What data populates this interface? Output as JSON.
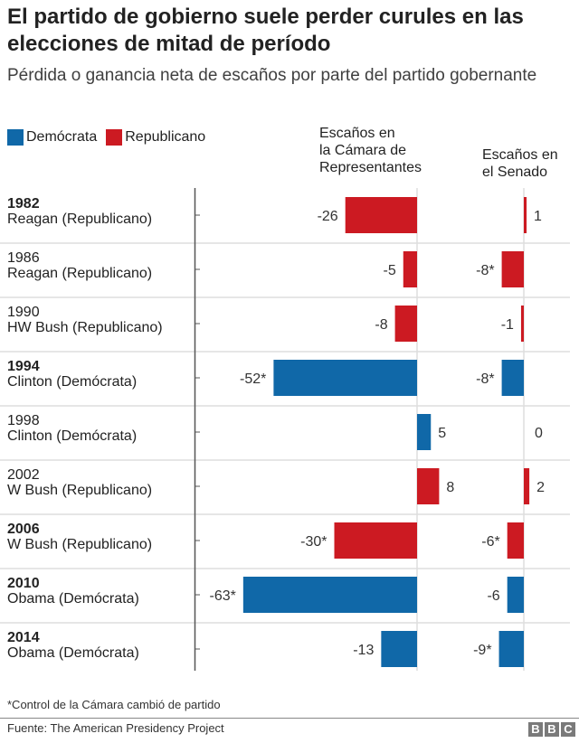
{
  "title": "El partido de gobierno suele perder curules en las elecciones de mitad de período",
  "subtitle": "Pérdida o ganancia neta de escaños por parte del partido gobernante",
  "legend": [
    {
      "label": "Demócrata",
      "color": "#1068a8"
    },
    {
      "label": "Republicano",
      "color": "#cc1a22"
    }
  ],
  "chart_data": {
    "type": "bar",
    "orientation": "horizontal",
    "columns": [
      "Escaños en la Cámara de Representantes",
      "Escaños en el Senado"
    ],
    "column_lines": {
      "house": [
        "Escaños en",
        "la Cámara de",
        "Representantes"
      ],
      "senate": [
        "Escaños en",
        "el Senado"
      ]
    },
    "rows": [
      {
        "year": "1982",
        "president": "Reagan (Republicano)",
        "party": "Republicano",
        "bold": true,
        "house": -26,
        "house_label": "-26",
        "senate": 1,
        "senate_label": "1"
      },
      {
        "year": "1986",
        "president": "Reagan (Republicano)",
        "party": "Republicano",
        "bold": false,
        "house": -5,
        "house_label": "-5",
        "senate": -8,
        "senate_label": "-8*"
      },
      {
        "year": "1990",
        "president": "HW Bush (Republicano)",
        "party": "Republicano",
        "bold": false,
        "house": -8,
        "house_label": "-8",
        "senate": -1,
        "senate_label": "-1"
      },
      {
        "year": "1994",
        "president": "Clinton (Demócrata)",
        "party": "Demócrata",
        "bold": true,
        "house": -52,
        "house_label": "-52*",
        "senate": -8,
        "senate_label": "-8*"
      },
      {
        "year": "1998",
        "president": "Clinton (Demócrata)",
        "party": "Demócrata",
        "bold": false,
        "house": 5,
        "house_label": "5",
        "senate": 0,
        "senate_label": "0"
      },
      {
        "year": "2002",
        "president": "W Bush (Republicano)",
        "party": "Republicano",
        "bold": false,
        "house": 8,
        "house_label": "8",
        "senate": 2,
        "senate_label": "2"
      },
      {
        "year": "2006",
        "president": "W Bush (Republicano)",
        "party": "Republicano",
        "bold": true,
        "house": -30,
        "house_label": "-30*",
        "senate": -6,
        "senate_label": "-6*"
      },
      {
        "year": "2010",
        "president": "Obama (Demócrata)",
        "party": "Demócrata",
        "bold": true,
        "house": -63,
        "house_label": "-63*",
        "senate": -6,
        "senate_label": "-6"
      },
      {
        "year": "2014",
        "president": "Obama (Demócrata)",
        "party": "Demócrata",
        "bold": true,
        "house": -13,
        "house_label": "-13",
        "senate": -9,
        "senate_label": "-9*"
      }
    ]
  },
  "note": "*Control de la Cámara cambió de partido",
  "source": "Fuente: The American Presidency Project",
  "logo": "BBC"
}
